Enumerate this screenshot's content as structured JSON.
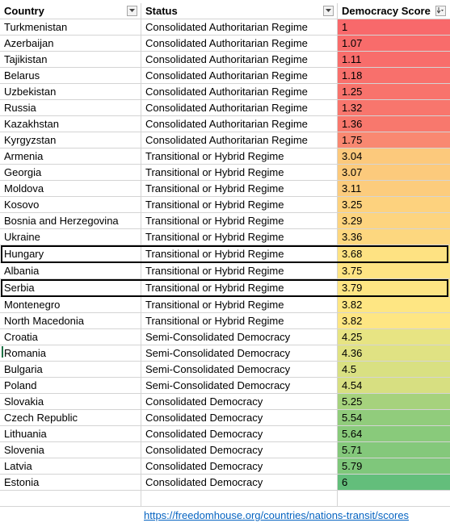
{
  "headers": {
    "country": "Country",
    "status": "Status",
    "score": "Democracy Score"
  },
  "icons": {
    "filter": "filter-dropdown-icon",
    "sort_desc": "sort-descending-filter-icon"
  },
  "rows": [
    {
      "country": "Turkmenistan",
      "status": "Consolidated Authoritarian Regime",
      "score": "1",
      "color": "#f8696b"
    },
    {
      "country": "Azerbaijan",
      "status": "Consolidated Authoritarian Regime",
      "score": "1.07",
      "color": "#f86c6b"
    },
    {
      "country": "Tajikistan",
      "status": "Consolidated Authoritarian Regime",
      "score": "1.11",
      "color": "#f86d6b"
    },
    {
      "country": "Belarus",
      "status": "Consolidated Authoritarian Regime",
      "score": "1.18",
      "color": "#f8706c"
    },
    {
      "country": "Uzbekistan",
      "status": "Consolidated Authoritarian Regime",
      "score": "1.25",
      "color": "#f8736c"
    },
    {
      "country": "Russia",
      "status": "Consolidated Authoritarian Regime",
      "score": "1.32",
      "color": "#f8766d"
    },
    {
      "country": "Kazakhstan",
      "status": "Consolidated Authoritarian Regime",
      "score": "1.36",
      "color": "#f8786d"
    },
    {
      "country": "Kyrgyzstan",
      "status": "Consolidated Authoritarian Regime",
      "score": "1.75",
      "color": "#f98871"
    },
    {
      "country": "Armenia",
      "status": "Transitional or Hybrid Regime",
      "score": "3.04",
      "color": "#fcc97c"
    },
    {
      "country": "Georgia",
      "status": "Transitional or Hybrid Regime",
      "score": "3.07",
      "color": "#fcca7c"
    },
    {
      "country": "Moldova",
      "status": "Transitional or Hybrid Regime",
      "score": "3.11",
      "color": "#fccc7d"
    },
    {
      "country": "Kosovo",
      "status": "Transitional or Hybrid Regime",
      "score": "3.25",
      "color": "#fdd27e"
    },
    {
      "country": "Bosnia and Herzegovina",
      "status": "Transitional or Hybrid Regime",
      "score": "3.29",
      "color": "#fdd47f"
    },
    {
      "country": "Ukraine",
      "status": "Transitional or Hybrid Regime",
      "score": "3.36",
      "color": "#fdd77f"
    },
    {
      "country": "Hungary",
      "status": "Transitional or Hybrid Regime",
      "score": "3.68",
      "color": "#fee282"
    },
    {
      "country": "Albania",
      "status": "Transitional or Hybrid Regime",
      "score": "3.75",
      "color": "#fee483"
    },
    {
      "country": "Serbia",
      "status": "Transitional or Hybrid Regime",
      "score": "3.79",
      "color": "#fee583"
    },
    {
      "country": "Montenegro",
      "status": "Transitional or Hybrid Regime",
      "score": "3.82",
      "color": "#fee683"
    },
    {
      "country": "North Macedonia",
      "status": "Transitional or Hybrid Regime",
      "score": "3.82",
      "color": "#fee683"
    },
    {
      "country": "Croatia",
      "status": "Semi-Consolidated Democracy",
      "score": "4.25",
      "color": "#e7e483"
    },
    {
      "country": "Romania",
      "status": "Semi-Consolidated Democracy",
      "score": "4.36",
      "color": "#e0e283"
    },
    {
      "country": "Bulgaria",
      "status": "Semi-Consolidated Democracy",
      "score": "4.5",
      "color": "#d9e082"
    },
    {
      "country": "Poland",
      "status": "Semi-Consolidated Democracy",
      "score": "4.54",
      "color": "#d7df81"
    },
    {
      "country": "Slovakia",
      "status": "Consolidated Democracy",
      "score": "5.25",
      "color": "#a6d27d"
    },
    {
      "country": "Czech Republic",
      "status": "Consolidated Democracy",
      "score": "5.54",
      "color": "#91cc7c"
    },
    {
      "country": "Lithuania",
      "status": "Consolidated Democracy",
      "score": "5.64",
      "color": "#89ca7b"
    },
    {
      "country": "Slovenia",
      "status": "Consolidated Democracy",
      "score": "5.71",
      "color": "#84c87b"
    },
    {
      "country": "Latvia",
      "status": "Consolidated Democracy",
      "score": "5.79",
      "color": "#7fc77b"
    },
    {
      "country": "Estonia",
      "status": "Consolidated Democracy",
      "score": "6",
      "color": "#63be7b"
    }
  ],
  "highlighted_rows": [
    "Hungary",
    "Serbia"
  ],
  "source_link": "https://freedomhouse.org/countries/nations-transit/scores"
}
